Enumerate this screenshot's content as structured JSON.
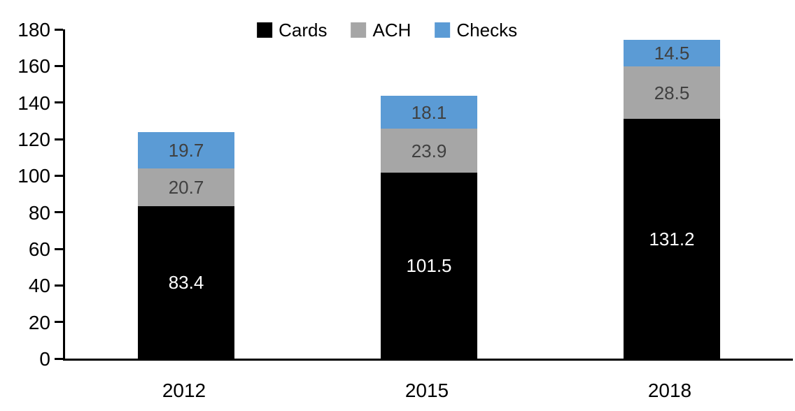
{
  "chart_data": {
    "type": "bar",
    "stacked": true,
    "title": "",
    "categories": [
      "2012",
      "2015",
      "2018"
    ],
    "series": [
      {
        "name": "Cards",
        "color": "#000000",
        "label_color": "#FFFFFF",
        "values": [
          83.4,
          101.5,
          131.2
        ]
      },
      {
        "name": "ACH",
        "color": "#A6A6A6",
        "label_color": "#404040",
        "values": [
          20.7,
          23.9,
          28.5
        ]
      },
      {
        "name": "Checks",
        "color": "#5B9BD5",
        "label_color": "#404040",
        "values": [
          19.7,
          18.1,
          14.5
        ]
      }
    ],
    "value_label_decimals": 1,
    "ylim": [
      0,
      180
    ],
    "ytick_step": 20,
    "yticks": [
      0,
      20,
      40,
      60,
      80,
      100,
      120,
      140,
      160,
      180
    ],
    "grid": false,
    "legend_position": "top",
    "value_labels": true,
    "axis_color": "#000000",
    "background": "#FFFFFF"
  }
}
